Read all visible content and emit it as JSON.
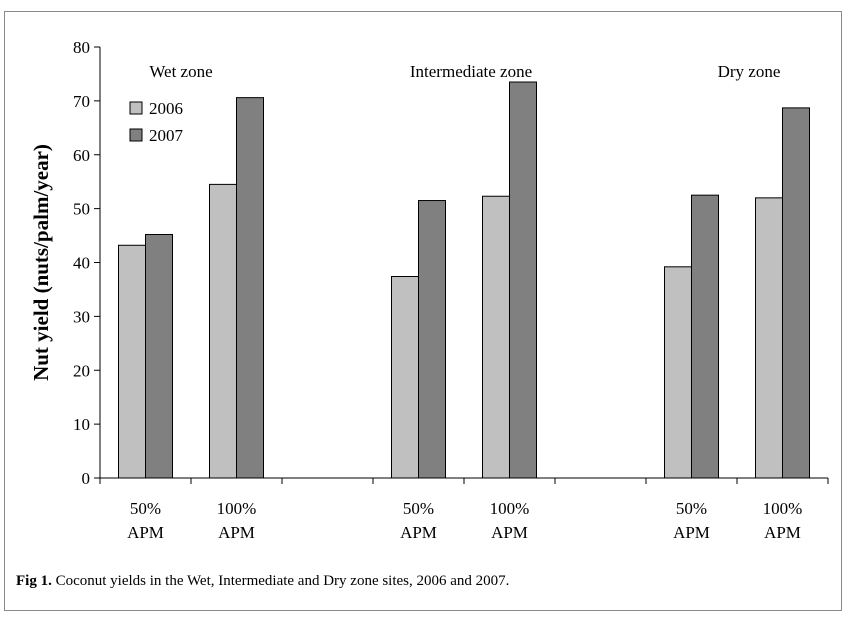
{
  "chart_data": {
    "type": "bar",
    "ylabel": "Nut yield (nuts/palm/year)",
    "ylim": [
      0,
      80
    ],
    "yticks": [
      0,
      10,
      20,
      30,
      40,
      50,
      60,
      70,
      80
    ],
    "grid": false,
    "legend_position": "top-left",
    "zones": [
      {
        "name": "Wet zone",
        "categories": [
          "50%\nAPM",
          "100%\nAPM"
        ]
      },
      {
        "name": "Intermediate zone",
        "categories": [
          "50%\nAPM",
          "100%\nAPM"
        ]
      },
      {
        "name": "Dry zone",
        "categories": [
          "50%\nAPM",
          "100%\nAPM"
        ]
      }
    ],
    "category_line1": "50%",
    "category_line1_b": "100%",
    "category_line2": "APM",
    "series": [
      {
        "name": "2006",
        "color": "#c0c0c0",
        "values": [
          43.2,
          54.5,
          37.4,
          52.3,
          39.2,
          52.0
        ]
      },
      {
        "name": "2007",
        "color": "#808080",
        "values": [
          45.2,
          70.6,
          51.5,
          73.5,
          52.5,
          68.7
        ]
      }
    ]
  },
  "caption": {
    "label": "Fig 1.",
    "text": " Coconut yields in the Wet, Intermediate and Dry zone sites, 2006 and 2007."
  }
}
